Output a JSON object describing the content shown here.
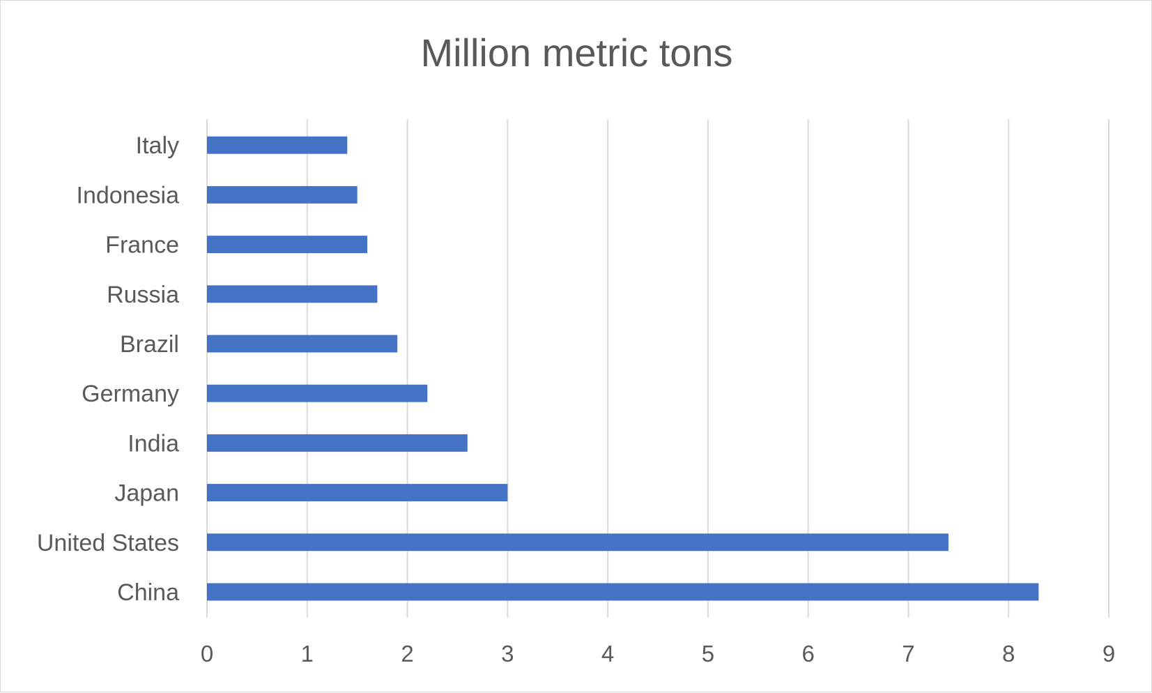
{
  "chart_data": {
    "type": "bar",
    "orientation": "horizontal",
    "title": "Million metric tons",
    "xlabel": "",
    "ylabel": "",
    "categories": [
      "China",
      "United States",
      "Japan",
      "India",
      "Germany",
      "Brazil",
      "Russia",
      "France",
      "Indonesia",
      "Italy"
    ],
    "values": [
      8.3,
      7.4,
      3.0,
      2.6,
      2.2,
      1.9,
      1.7,
      1.6,
      1.5,
      1.4
    ],
    "xlim": [
      0,
      9
    ],
    "x_ticks": [
      0,
      1,
      2,
      3,
      4,
      5,
      6,
      7,
      8,
      9
    ],
    "grid": "vertical",
    "legend": "none",
    "bar_color": "#4472c4",
    "grid_color": "#d9d9d9",
    "text_color": "#595959"
  }
}
